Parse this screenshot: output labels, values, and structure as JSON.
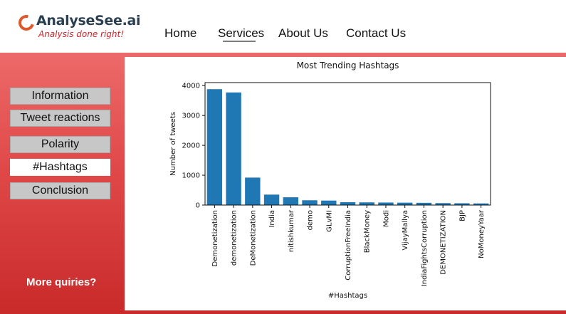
{
  "logo": {
    "name": "AnalyseSee.ai",
    "tagline": "Analysis done right!"
  },
  "nav": {
    "items": [
      "Home",
      "Services",
      "About Us",
      "Contact Us"
    ],
    "active": "Services"
  },
  "sidebar": {
    "items": [
      "Information",
      "Tweet reactions",
      "Polarity",
      "#Hashtags",
      "Conclusion"
    ],
    "active": "#Hashtags",
    "more_link": "More quiries?"
  },
  "colors": {
    "accent": "#e04848",
    "bar": "#1f77b4"
  },
  "chart_data": {
    "type": "bar",
    "title": "Most Trending Hashtags",
    "xlabel": "#Hashtags",
    "ylabel": "Number of tweets",
    "categories": [
      "Demonetization",
      "demonetization",
      "DeMonetization",
      "India",
      "nitishkumar",
      "demo",
      "GLvMI",
      "CorruptionFreeIndia",
      "BlackMoney",
      "Modi",
      "VijayMallya",
      "IndiaFightsCorruption",
      "DEMONETIZATION",
      "BJP",
      "NoMoneyYaar"
    ],
    "values": [
      3880,
      3770,
      920,
      350,
      260,
      160,
      150,
      95,
      90,
      85,
      80,
      75,
      65,
      60,
      55
    ],
    "ylim": [
      0,
      4100
    ],
    "yticks": [
      0,
      1000,
      2000,
      3000,
      4000
    ],
    "grid": false
  }
}
